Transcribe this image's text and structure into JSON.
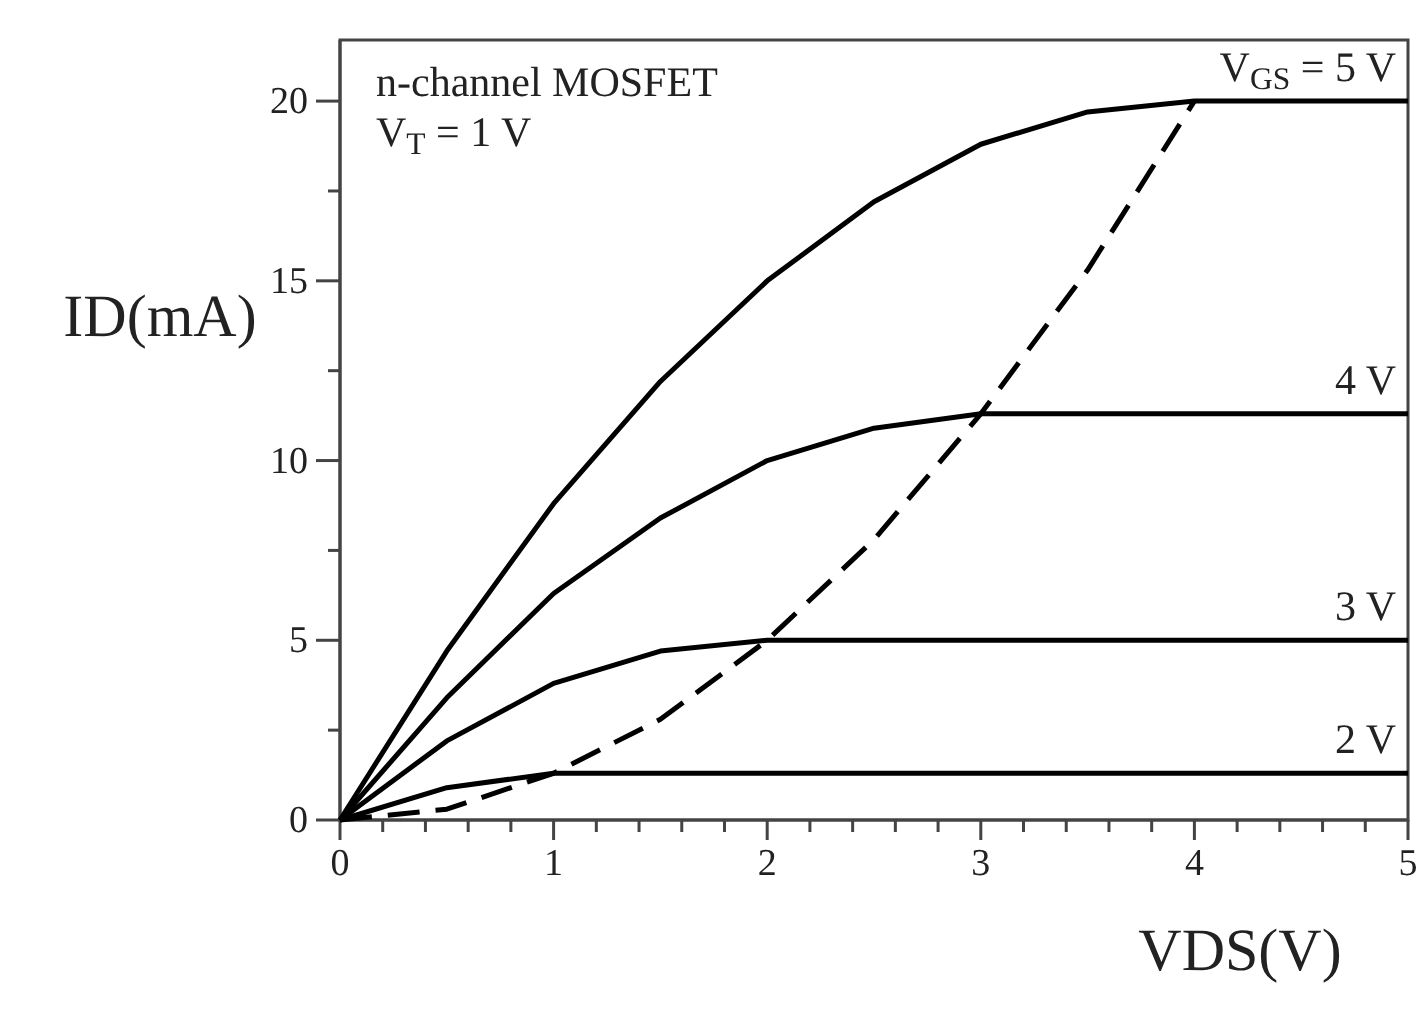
{
  "chart_data": {
    "type": "line",
    "xlabel": "VDS(V)",
    "ylabel": "ID(mA)",
    "annotations": [
      "n-channel MOSFET",
      "V$_{T}$ = 1 V"
    ],
    "legend": false,
    "grid": false,
    "marker": "none",
    "line_style": "solid",
    "xlim": [
      0,
      5
    ],
    "ylim": [
      0,
      21.7
    ],
    "xticks": [
      0,
      {
        "value": 0.2,
        "label": null
      },
      {
        "value": 0.4,
        "label": null
      },
      {
        "value": 0.6,
        "label": null
      },
      {
        "value": 0.8,
        "label": null
      },
      1,
      {
        "value": 1.2,
        "label": null
      },
      {
        "value": 1.4,
        "label": null
      },
      {
        "value": 1.6,
        "label": null
      },
      {
        "value": 1.8,
        "label": null
      },
      2,
      {
        "value": 2.2,
        "label": null
      },
      {
        "value": 2.4,
        "label": null
      },
      {
        "value": 2.6,
        "label": null
      },
      {
        "value": 2.8,
        "label": null
      },
      3,
      {
        "value": 3.2,
        "label": null
      },
      {
        "value": 3.4,
        "label": null
      },
      {
        "value": 3.6,
        "label": null
      },
      {
        "value": 3.8,
        "label": null
      },
      4,
      {
        "value": 4.2,
        "label": null
      },
      {
        "value": 4.4,
        "label": null
      },
      {
        "value": 4.6,
        "label": null
      },
      {
        "value": 4.8,
        "label": null
      },
      5
    ],
    "yticks": [
      0,
      {
        "value": 2.5,
        "label": null
      },
      5,
      {
        "value": 7.5,
        "label": null
      },
      10,
      {
        "value": 12.5,
        "label": null
      },
      15,
      {
        "value": 17.5,
        "label": null
      },
      20
    ],
    "series": [
      {
        "name": "V$_{GS}$ = 5 V",
        "color": "#000000",
        "x": [
          0,
          0.5,
          1,
          1.5,
          2,
          2.5,
          3,
          3.5,
          4,
          5
        ],
        "values": [
          0,
          4.7,
          8.8,
          12.2,
          15,
          17.2,
          18.8,
          19.7,
          20,
          20
        ]
      },
      {
        "name": "4 V",
        "color": "#000000",
        "x": [
          0,
          0.5,
          1,
          1.5,
          2,
          2.5,
          3,
          5
        ],
        "values": [
          0,
          3.4,
          6.3,
          8.4,
          10,
          10.9,
          11.3,
          11.3
        ]
      },
      {
        "name": "3 V",
        "color": "#000000",
        "x": [
          0,
          0.5,
          1,
          1.5,
          2,
          5
        ],
        "values": [
          0,
          2.2,
          3.8,
          4.7,
          5,
          5
        ]
      },
      {
        "name": "2 V",
        "color": "#000000",
        "x": [
          0,
          0.5,
          1,
          5
        ],
        "values": [
          0,
          0.9,
          1.3,
          1.3
        ]
      },
      {
        "color": "#000000",
        "line_style": "dashed",
        "x": [
          0,
          0.5,
          1,
          1.5,
          2,
          2.5,
          3,
          3.5,
          4
        ],
        "values": [
          0,
          0.3,
          1.3,
          2.8,
          5,
          7.8,
          11.3,
          15.3,
          20
        ]
      }
    ]
  }
}
